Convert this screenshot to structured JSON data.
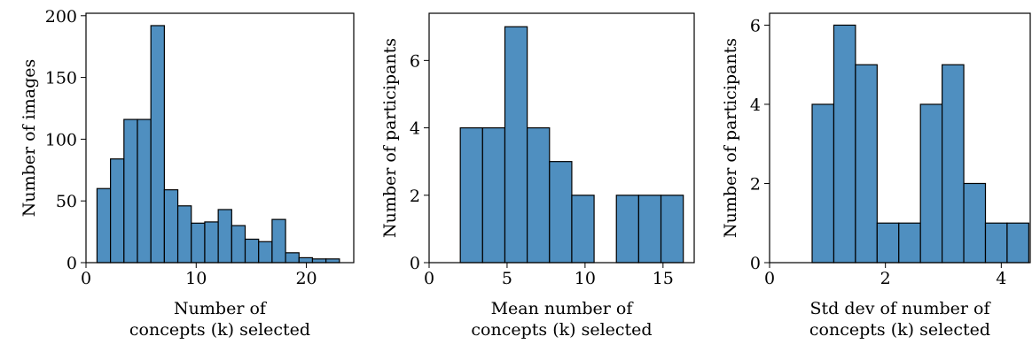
{
  "chart_data": [
    {
      "type": "histogram",
      "xlabel": [
        "Number of",
        "concepts (k) selected"
      ],
      "ylabel": "Number of images",
      "bins": [
        1,
        2.2222,
        3.4444,
        4.6667,
        5.8889,
        7.1111,
        8.3333,
        9.5556,
        10.7778,
        12,
        13.2222,
        14.4444,
        15.6667,
        16.8889,
        18.1111,
        19.3333,
        20.5556,
        21.7778,
        23
      ],
      "counts": [
        60,
        84,
        116,
        116,
        192,
        59,
        46,
        32,
        33,
        43,
        30,
        19,
        17,
        35,
        8,
        4,
        3,
        3
      ],
      "color": "#4f8fc0",
      "xlim": [
        0,
        24.3
      ],
      "ylim": [
        0,
        202
      ],
      "xticks": [
        0,
        10,
        20
      ],
      "yticks": [
        0,
        50,
        100,
        150,
        200
      ]
    },
    {
      "type": "histogram",
      "xlabel": [
        "Mean number of",
        "concepts (k) selected"
      ],
      "ylabel": "Number of participants",
      "bins": [
        2,
        3.43,
        4.86,
        6.29,
        7.72,
        9.15,
        10.58,
        12.01,
        13.44,
        14.87,
        16.3
      ],
      "counts": [
        4,
        4,
        7,
        4,
        3,
        2,
        0,
        2,
        2,
        2
      ],
      "color": "#4f8fc0",
      "xlim": [
        0,
        17
      ],
      "ylim": [
        0,
        7.4
      ],
      "xticks": [
        0,
        5,
        10,
        15
      ],
      "yticks": [
        0,
        2,
        4,
        6
      ]
    },
    {
      "type": "histogram",
      "xlabel": [
        "Std dev of number of",
        "concepts (k) selected"
      ],
      "ylabel": "Number of participants",
      "bins": [
        0.735,
        1.109,
        1.483,
        1.857,
        2.231,
        2.605,
        2.979,
        3.353,
        3.727,
        4.101,
        4.475
      ],
      "counts": [
        4,
        6,
        5,
        1,
        1,
        4,
        5,
        2,
        1,
        1
      ],
      "color": "#4f8fc0",
      "xlim": [
        0,
        4.5
      ],
      "ylim": [
        0,
        6.3
      ],
      "xticks": [
        0,
        2,
        4
      ],
      "yticks": [
        0,
        2,
        4,
        6
      ]
    }
  ]
}
